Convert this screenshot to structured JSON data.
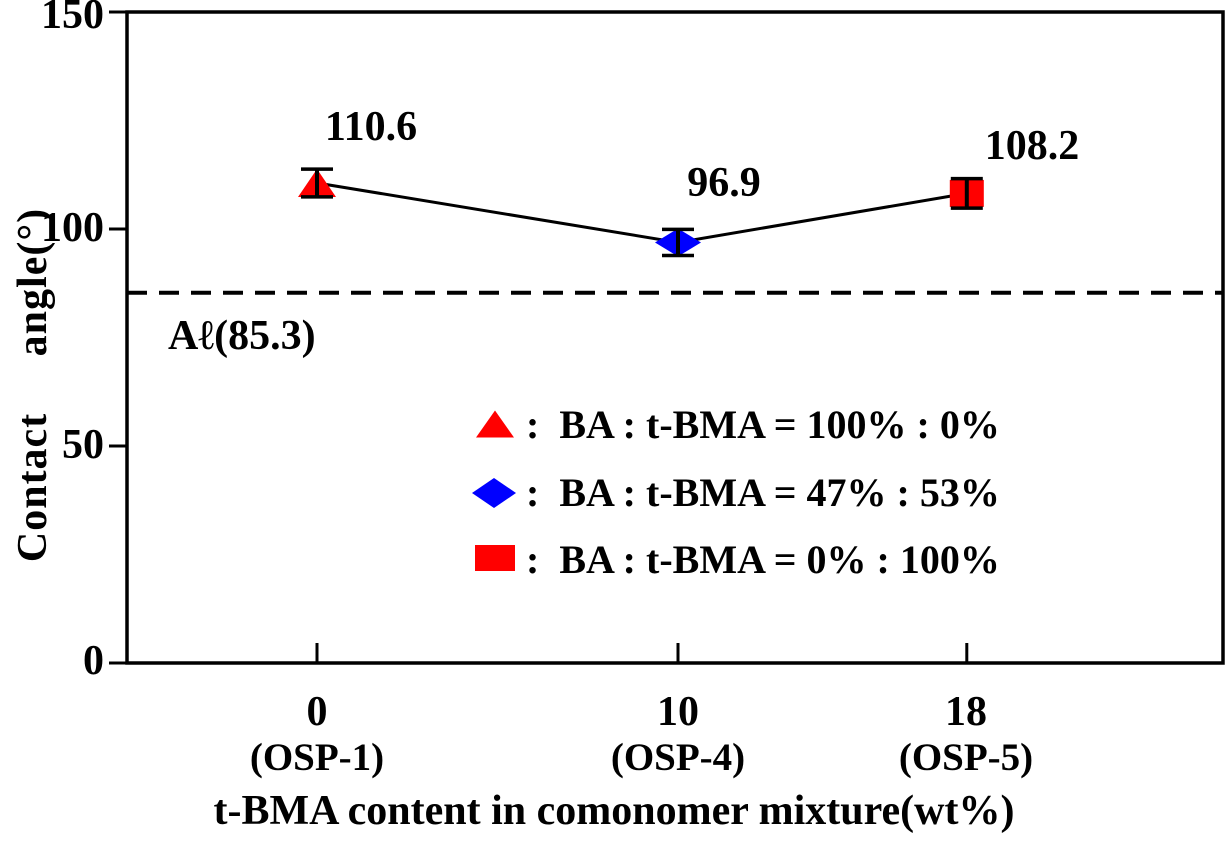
{
  "chart_data": {
    "type": "line",
    "title": "",
    "xlabel": "t-BMA content in comonomer mixture(wt%)",
    "ylabel": "Contact angle(°)",
    "x": [
      0,
      10,
      18
    ],
    "y": [
      110.6,
      96.9,
      108.2
    ],
    "y_errors": [
      3.2,
      3.0,
      3.4
    ],
    "point_labels": [
      "110.6",
      "96.9",
      "108.2"
    ],
    "x_tick_labels": [
      "0",
      "10",
      "18"
    ],
    "x_tick_sublabels": [
      "(OSP-1)",
      "(OSP-4)",
      "(OSP-5)"
    ],
    "yticks": [
      0,
      50,
      100,
      150
    ],
    "ytick_labels": [
      "0",
      "50",
      "100",
      "150"
    ],
    "ylim": [
      0,
      150
    ],
    "grid": false,
    "line_color": "#000000",
    "markers": [
      {
        "shape": "triangle",
        "color": "#ff0000"
      },
      {
        "shape": "diamond",
        "color": "#0000ff"
      },
      {
        "shape": "square",
        "color": "#ff0000"
      }
    ],
    "reference_line": {
      "value": 85.3,
      "label": "Aℓ(85.3)",
      "style": "dashed",
      "color": "#000000"
    },
    "legend": {
      "position": "center-bottom",
      "entries": [
        {
          "marker": "triangle",
          "color": "#ff0000",
          "label": ":  BA : t-BMA = 100% : 0%"
        },
        {
          "marker": "diamond",
          "color": "#0000ff",
          "label": ":  BA : t-BMA = 47% : 53%"
        },
        {
          "marker": "square",
          "color": "#ff0000",
          "label": ":  BA : t-BMA = 0% : 100%"
        }
      ]
    }
  }
}
